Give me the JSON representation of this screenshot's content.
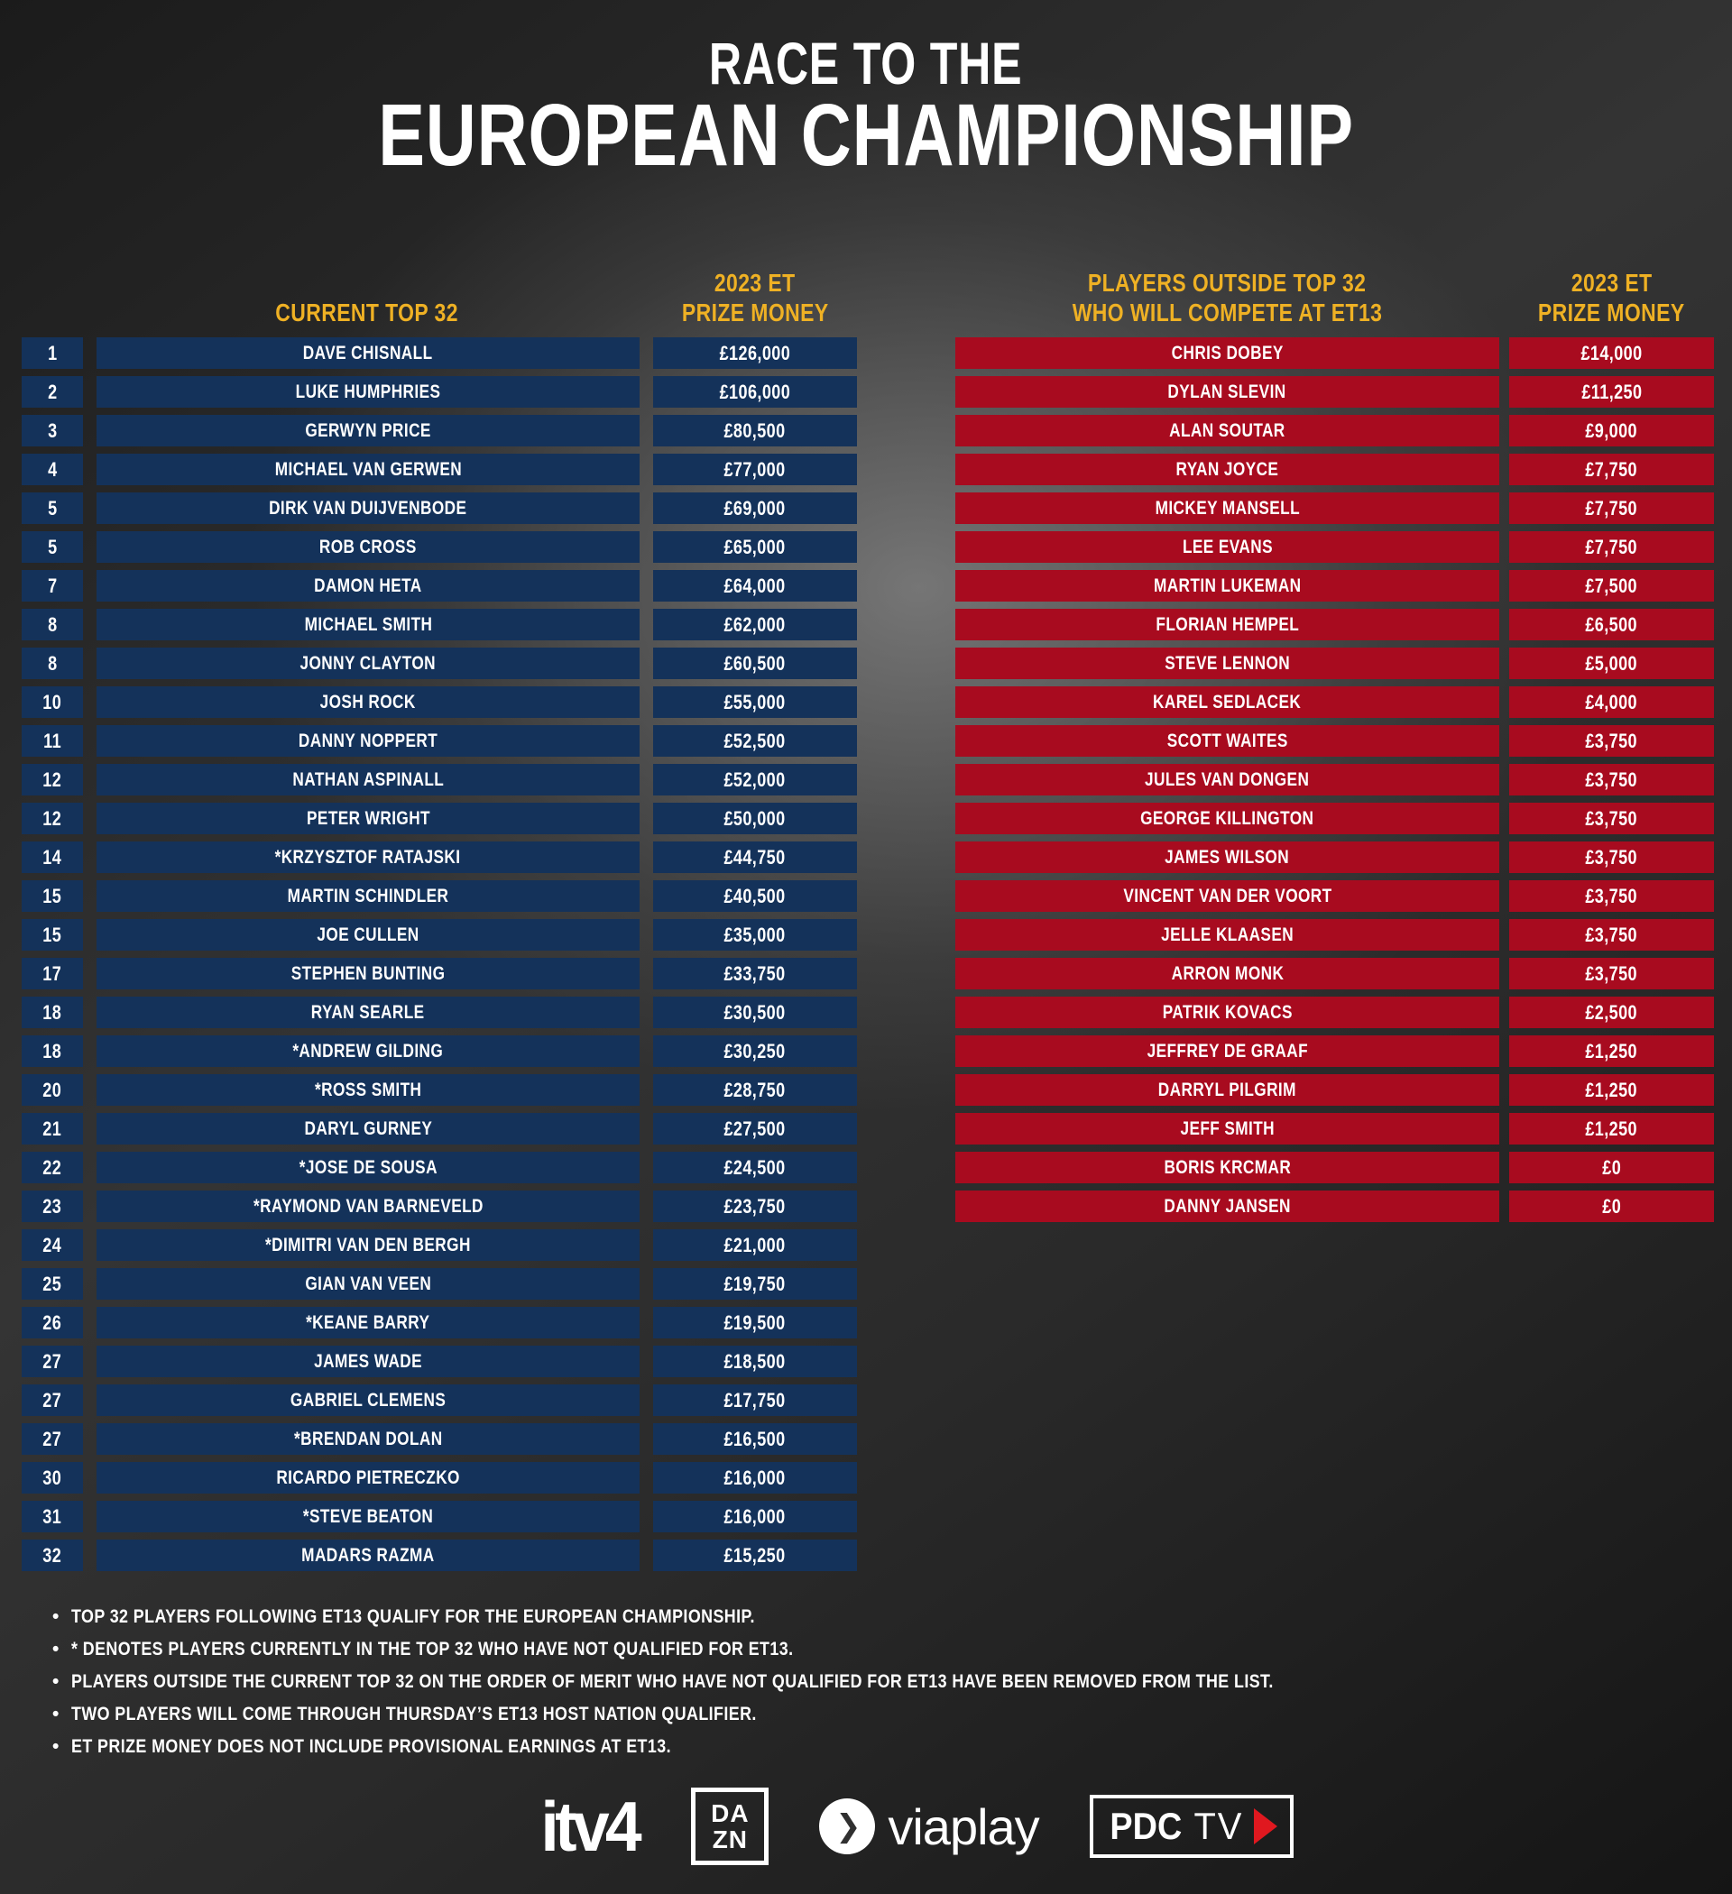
{
  "title": {
    "line1": "RACE TO THE",
    "line2": "EUROPEAN CHAMPIONSHIP"
  },
  "colors": {
    "navy": "#14325a",
    "red": "#a80b1f",
    "gold": "#efb124",
    "text": "#ffffff",
    "play_red": "#e0181f"
  },
  "left_table": {
    "name_header": "CURRENT TOP 32",
    "prize_header_line1": "2023 ET",
    "prize_header_line2": "PRIZE MONEY",
    "rows": [
      {
        "rank": "1",
        "name": "DAVE CHISNALL",
        "prize": "£126,000"
      },
      {
        "rank": "2",
        "name": "LUKE HUMPHRIES",
        "prize": "£106,000"
      },
      {
        "rank": "3",
        "name": "GERWYN PRICE",
        "prize": "£80,500"
      },
      {
        "rank": "4",
        "name": "MICHAEL VAN GERWEN",
        "prize": "£77,000"
      },
      {
        "rank": "5",
        "name": "DIRK VAN DUIJVENBODE",
        "prize": "£69,000"
      },
      {
        "rank": "5",
        "name": "ROB CROSS",
        "prize": "£65,000"
      },
      {
        "rank": "7",
        "name": "DAMON HETA",
        "prize": "£64,000"
      },
      {
        "rank": "8",
        "name": "MICHAEL SMITH",
        "prize": "£62,000"
      },
      {
        "rank": "8",
        "name": "JONNY CLAYTON",
        "prize": "£60,500"
      },
      {
        "rank": "10",
        "name": "JOSH ROCK",
        "prize": "£55,000"
      },
      {
        "rank": "11",
        "name": "DANNY NOPPERT",
        "prize": "£52,500"
      },
      {
        "rank": "12",
        "name": "NATHAN ASPINALL",
        "prize": "£52,000"
      },
      {
        "rank": "12",
        "name": "PETER WRIGHT",
        "prize": "£50,000"
      },
      {
        "rank": "14",
        "name": "*KRZYSZTOF RATAJSKI",
        "prize": "£44,750"
      },
      {
        "rank": "15",
        "name": "MARTIN SCHINDLER",
        "prize": "£40,500"
      },
      {
        "rank": "15",
        "name": "JOE CULLEN",
        "prize": "£35,000"
      },
      {
        "rank": "17",
        "name": "STEPHEN BUNTING",
        "prize": "£33,750"
      },
      {
        "rank": "18",
        "name": "RYAN SEARLE",
        "prize": "£30,500"
      },
      {
        "rank": "18",
        "name": "*ANDREW GILDING",
        "prize": "£30,250"
      },
      {
        "rank": "20",
        "name": "*ROSS SMITH",
        "prize": "£28,750"
      },
      {
        "rank": "21",
        "name": "DARYL GURNEY",
        "prize": "£27,500"
      },
      {
        "rank": "22",
        "name": "*JOSE DE SOUSA",
        "prize": "£24,500"
      },
      {
        "rank": "23",
        "name": "*RAYMOND VAN BARNEVELD",
        "prize": "£23,750"
      },
      {
        "rank": "24",
        "name": "*DIMITRI VAN DEN BERGH",
        "prize": "£21,000"
      },
      {
        "rank": "25",
        "name": "GIAN VAN VEEN",
        "prize": "£19,750"
      },
      {
        "rank": "26",
        "name": "*KEANE BARRY",
        "prize": "£19,500"
      },
      {
        "rank": "27",
        "name": "JAMES WADE",
        "prize": "£18,500"
      },
      {
        "rank": "27",
        "name": "GABRIEL CLEMENS",
        "prize": "£17,750"
      },
      {
        "rank": "27",
        "name": "*BRENDAN DOLAN",
        "prize": "£16,500"
      },
      {
        "rank": "30",
        "name": "RICARDO PIETRECZKO",
        "prize": "£16,000"
      },
      {
        "rank": "31",
        "name": "*STEVE BEATON",
        "prize": "£16,000"
      },
      {
        "rank": "32",
        "name": "MADARS RAZMA",
        "prize": "£15,250"
      }
    ]
  },
  "right_table": {
    "name_header_line1": "PLAYERS OUTSIDE TOP 32",
    "name_header_line2": "WHO WILL COMPETE AT ET13",
    "prize_header_line1": "2023 ET",
    "prize_header_line2": "PRIZE MONEY",
    "rows": [
      {
        "name": "CHRIS DOBEY",
        "prize": "£14,000"
      },
      {
        "name": "DYLAN SLEVIN",
        "prize": "£11,250"
      },
      {
        "name": "ALAN SOUTAR",
        "prize": "£9,000"
      },
      {
        "name": "RYAN JOYCE",
        "prize": "£7,750"
      },
      {
        "name": "MICKEY MANSELL",
        "prize": "£7,750"
      },
      {
        "name": "LEE EVANS",
        "prize": "£7,750"
      },
      {
        "name": "MARTIN LUKEMAN",
        "prize": "£7,500"
      },
      {
        "name": "FLORIAN HEMPEL",
        "prize": "£6,500"
      },
      {
        "name": "STEVE LENNON",
        "prize": "£5,000"
      },
      {
        "name": "KAREL SEDLACEK",
        "prize": "£4,000"
      },
      {
        "name": "SCOTT WAITES",
        "prize": "£3,750"
      },
      {
        "name": "JULES VAN DONGEN",
        "prize": "£3,750"
      },
      {
        "name": "GEORGE KILLINGTON",
        "prize": "£3,750"
      },
      {
        "name": "JAMES WILSON",
        "prize": "£3,750"
      },
      {
        "name": "VINCENT VAN DER VOORT",
        "prize": "£3,750"
      },
      {
        "name": "JELLE KLAASEN",
        "prize": "£3,750"
      },
      {
        "name": "ARRON MONK",
        "prize": "£3,750"
      },
      {
        "name": "PATRIK KOVACS",
        "prize": "£2,500"
      },
      {
        "name": "JEFFREY DE GRAAF",
        "prize": "£1,250"
      },
      {
        "name": "DARRYL PILGRIM",
        "prize": "£1,250"
      },
      {
        "name": "JEFF SMITH",
        "prize": "£1,250"
      },
      {
        "name": "BORIS KRCMAR",
        "prize": "£0"
      },
      {
        "name": "DANNY JANSEN",
        "prize": "£0"
      }
    ]
  },
  "footnotes": [
    "TOP 32 PLAYERS FOLLOWING ET13 QUALIFY FOR THE EUROPEAN CHAMPIONSHIP.",
    "* DENOTES PLAYERS CURRENTLY IN THE TOP 32 WHO HAVE NOT QUALIFIED FOR ET13.",
    "PLAYERS OUTSIDE THE CURRENT TOP 32 ON THE ORDER OF MERIT WHO HAVE NOT QUALIFIED FOR ET13 HAVE BEEN REMOVED FROM THE LIST.",
    "TWO PLAYERS WILL COME THROUGH THURSDAY’S ET13 HOST NATION QUALIFIER.",
    "ET PRIZE MONEY DOES NOT INCLUDE PROVISIONAL EARNINGS AT ET13."
  ],
  "logos": {
    "itv4": "itv4",
    "dazn_line1": "DA",
    "dazn_line2": "ZN",
    "viaplay_chevron": "❯",
    "viaplay_label": "viaplay",
    "pdctv_pdc": "PDC",
    "pdctv_tv": "TV"
  }
}
